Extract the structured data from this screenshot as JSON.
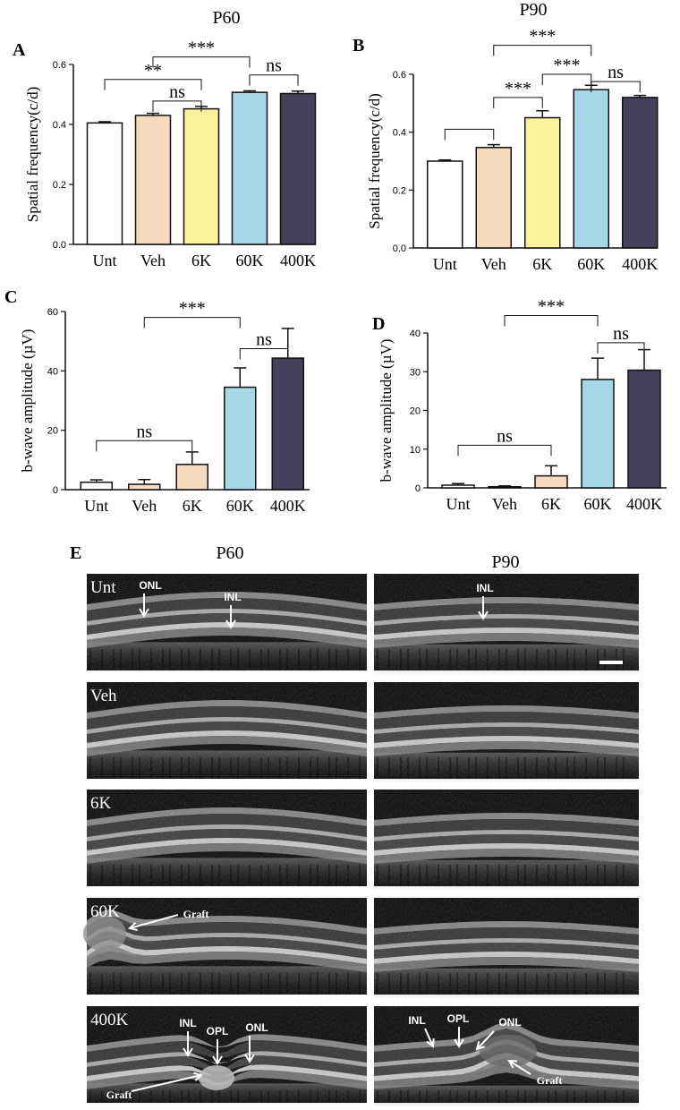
{
  "figure": {
    "column_titles": [
      "P60",
      "P90"
    ],
    "panel_e_label": "E",
    "oct_rows": [
      "Unt",
      "Veh",
      "6K",
      "60K",
      "400K"
    ],
    "annotations": {
      "onl": "ONL",
      "inl": "INL",
      "opl": "OPL",
      "graft": "Graft"
    }
  },
  "chart_data": [
    {
      "panel": "A",
      "type": "bar",
      "categories": [
        "Unt",
        "Veh",
        "6K",
        "60K",
        "400K"
      ],
      "values": [
        0.405,
        0.43,
        0.452,
        0.507,
        0.503
      ],
      "errors": [
        0.004,
        0.007,
        0.008,
        0.005,
        0.008
      ],
      "colors": [
        "#ffffff",
        "#f7d9bb",
        "#fbf29e",
        "#a7d7e6",
        "#45415d"
      ],
      "ylabel": "Spatial frequency(c/d)",
      "ylim": [
        0,
        0.6
      ],
      "yticks": [
        "0.0",
        "0.2",
        "0.4",
        "0.6"
      ],
      "comparisons": [
        {
          "from": 0,
          "to": 2,
          "label": "**",
          "level": 0.55
        },
        {
          "from": 1,
          "to": 2,
          "label": "ns",
          "level": 0.478
        },
        {
          "from": 1,
          "to": 3,
          "label": "***",
          "level": 0.625
        },
        {
          "from": 3,
          "to": 4,
          "label": "ns",
          "level": 0.565
        }
      ]
    },
    {
      "panel": "B",
      "type": "bar",
      "categories": [
        "Unt",
        "Veh",
        "6K",
        "60K",
        "400K"
      ],
      "values": [
        0.3,
        0.347,
        0.45,
        0.547,
        0.52
      ],
      "errors": [
        0.004,
        0.01,
        0.024,
        0.015,
        0.007
      ],
      "colors": [
        "#ffffff",
        "#f7d9bb",
        "#fbf29e",
        "#a7d7e6",
        "#45415d"
      ],
      "ylabel": "Spatial frequency(c/d)",
      "ylim": [
        0,
        0.6
      ],
      "yticks": [
        "0.0",
        "0.2",
        "0.4",
        "0.6"
      ],
      "comparisons": [
        {
          "from": 0,
          "to": 1,
          "label": "",
          "level": 0.41
        },
        {
          "from": 1,
          "to": 2,
          "label": "***",
          "level": 0.52
        },
        {
          "from": 1,
          "to": 3,
          "label": "***",
          "level": 0.7
        },
        {
          "from": 2,
          "to": 3,
          "label": "***",
          "level": 0.6
        },
        {
          "from": 3,
          "to": 4,
          "label": "ns",
          "level": 0.575
        }
      ]
    },
    {
      "panel": "C",
      "type": "bar",
      "categories": [
        "Unt",
        "Veh",
        "6K",
        "60K",
        "400K"
      ],
      "values": [
        2.5,
        1.8,
        8.5,
        34.5,
        44.3
      ],
      "errors": [
        0.8,
        1.6,
        4.2,
        6.5,
        10
      ],
      "colors": [
        "#ffffff",
        "#f7d9bb",
        "#f7d9bb",
        "#a7d7e6",
        "#45415d"
      ],
      "ylabel": "b-wave amplitude (µV)",
      "ylim": [
        0,
        60
      ],
      "yticks": [
        "0",
        "20",
        "40",
        "60"
      ],
      "comparisons": [
        {
          "from": 0,
          "to": 2,
          "label": "ns",
          "level": 16.5
        },
        {
          "from": 1,
          "to": 3,
          "label": "***",
          "level": 58
        },
        {
          "from": 3,
          "to": 4,
          "label": "ns",
          "level": 47.5
        }
      ]
    },
    {
      "panel": "D",
      "type": "bar",
      "categories": [
        "Unt",
        "Veh",
        "6K",
        "60K",
        "400K"
      ],
      "values": [
        0.7,
        0.3,
        3.1,
        28,
        30.4
      ],
      "errors": [
        0.4,
        0.2,
        2.6,
        5.5,
        5.3
      ],
      "colors": [
        "#ffffff",
        "#f7d9bb",
        "#f7d9bb",
        "#a7d7e6",
        "#45415d"
      ],
      "ylabel": "b-wave amplitude (µV)",
      "ylim": [
        0,
        40
      ],
      "yticks": [
        "0",
        "10",
        "20",
        "30",
        "40"
      ],
      "comparisons": [
        {
          "from": 0,
          "to": 2,
          "label": "ns",
          "level": 11
        },
        {
          "from": 1,
          "to": 3,
          "label": "***",
          "level": 44.5
        },
        {
          "from": 3,
          "to": 4,
          "label": "ns",
          "level": 37.5
        }
      ]
    }
  ]
}
